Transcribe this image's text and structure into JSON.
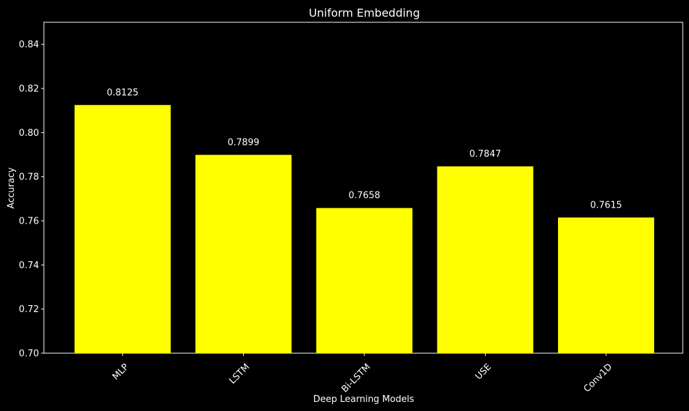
{
  "chart_data": {
    "type": "bar",
    "title": "Uniform Embedding",
    "xlabel": "Deep Learning Models",
    "ylabel": "Accuracy",
    "categories": [
      "MLP",
      "LSTM",
      "Bi-LSTM",
      "USE",
      "Conv1D"
    ],
    "values": [
      0.8125,
      0.7899,
      0.7658,
      0.7847,
      0.7615
    ],
    "data_labels": [
      "0.8125",
      "0.7899",
      "0.7658",
      "0.7847",
      "0.7615"
    ],
    "ylim": [
      0.7,
      0.85
    ],
    "yticks": [
      0.7,
      0.72,
      0.74,
      0.76,
      0.78,
      0.8,
      0.82,
      0.84
    ],
    "ytick_labels": [
      "0.70",
      "0.72",
      "0.74",
      "0.76",
      "0.78",
      "0.80",
      "0.82",
      "0.84"
    ],
    "grid": false,
    "colors": {
      "background": "#000000",
      "bar": "#ffff00",
      "text": "#ffffff",
      "axes": "#ffffff"
    }
  }
}
